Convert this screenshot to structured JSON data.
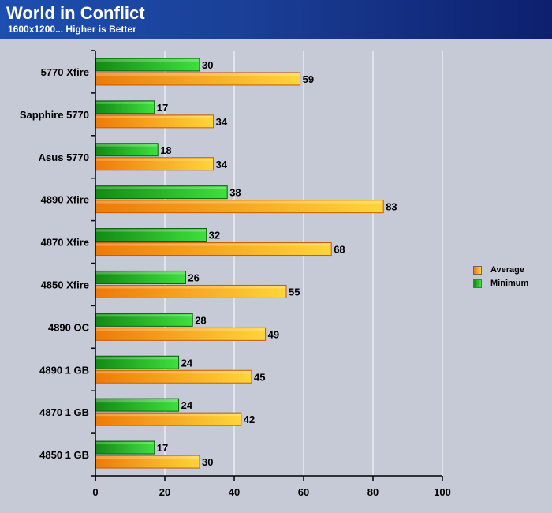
{
  "chart_data": {
    "type": "bar",
    "orientation": "horizontal",
    "title": "World in Conflict",
    "subtitle": "1600x1200... Higher is Better",
    "categories": [
      "5770 Xfire",
      "Sapphire 5770",
      "Asus 5770",
      "4890 Xfire",
      "4870 Xfire",
      "4850 Xfire",
      "4890 OC",
      "4890 1 GB",
      "4870 1 GB",
      "4850 1 GB"
    ],
    "series": [
      {
        "name": "Minimum",
        "color": "#22b022",
        "values": [
          30,
          17,
          18,
          38,
          32,
          26,
          28,
          24,
          24,
          17
        ]
      },
      {
        "name": "Average",
        "color": "#f5a820",
        "values": [
          59,
          34,
          34,
          83,
          68,
          55,
          49,
          45,
          42,
          30
        ]
      }
    ],
    "xlim": [
      0,
      100
    ],
    "xticks": [
      0,
      20,
      40,
      60,
      80,
      100
    ],
    "grid": true,
    "legend_position": "right",
    "legend_order": [
      "Average",
      "Minimum"
    ]
  }
}
